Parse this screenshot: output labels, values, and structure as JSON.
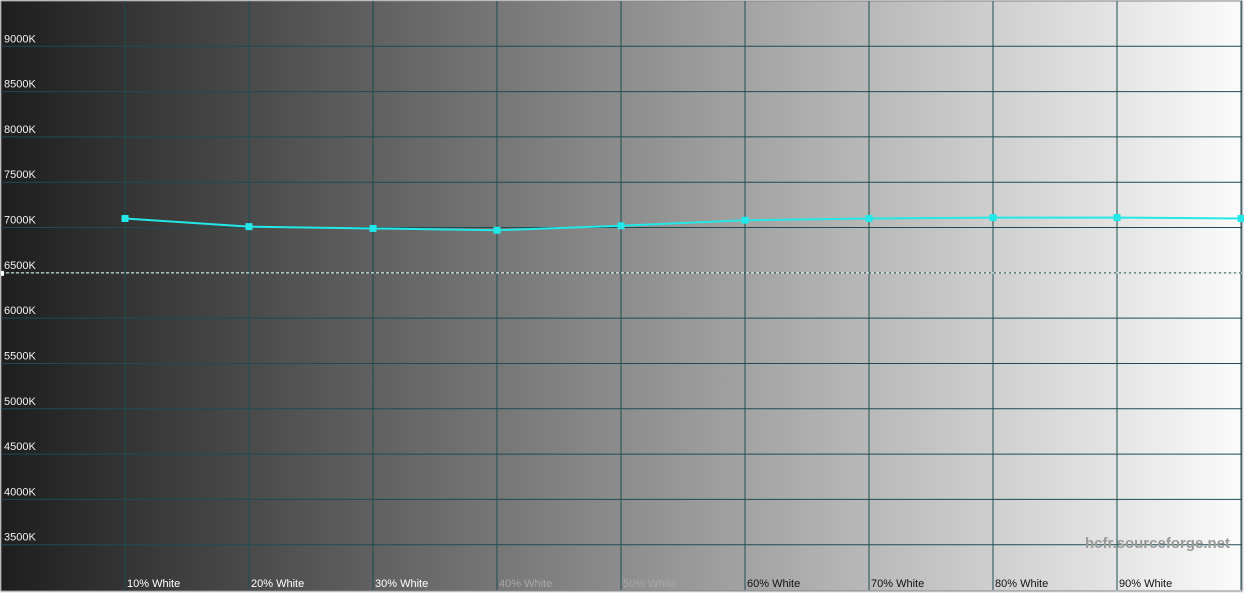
{
  "chart_data": {
    "type": "line",
    "categories": [
      "10% White",
      "20% White",
      "30% White",
      "40% White",
      "50% White",
      "60% White",
      "70% White",
      "80% White",
      "90% White",
      null
    ],
    "series": [
      {
        "color": "#22e8e8",
        "values": [
          7100,
          7010,
          6990,
          6970,
          7020,
          7080,
          7100,
          7110,
          7110,
          7100
        ]
      }
    ],
    "reference": 6500,
    "ylim": [
      3000,
      9500
    ],
    "yticks": [
      {
        "value": 3500,
        "label": "3500K"
      },
      {
        "value": 4000,
        "label": "4000K"
      },
      {
        "value": 4500,
        "label": "4500K"
      },
      {
        "value": 5000,
        "label": "5000K"
      },
      {
        "value": 5500,
        "label": "5500K"
      },
      {
        "value": 6000,
        "label": "6000K"
      },
      {
        "value": 6500,
        "label": "6500K"
      },
      {
        "value": 7000,
        "label": "7000K"
      },
      {
        "value": 7500,
        "label": "7500K"
      },
      {
        "value": 8000,
        "label": "8000K"
      },
      {
        "value": 8500,
        "label": "8500K"
      },
      {
        "value": 9000,
        "label": "9000K"
      }
    ],
    "grid": true,
    "watermark": "hcfr.sourceforge.net"
  }
}
